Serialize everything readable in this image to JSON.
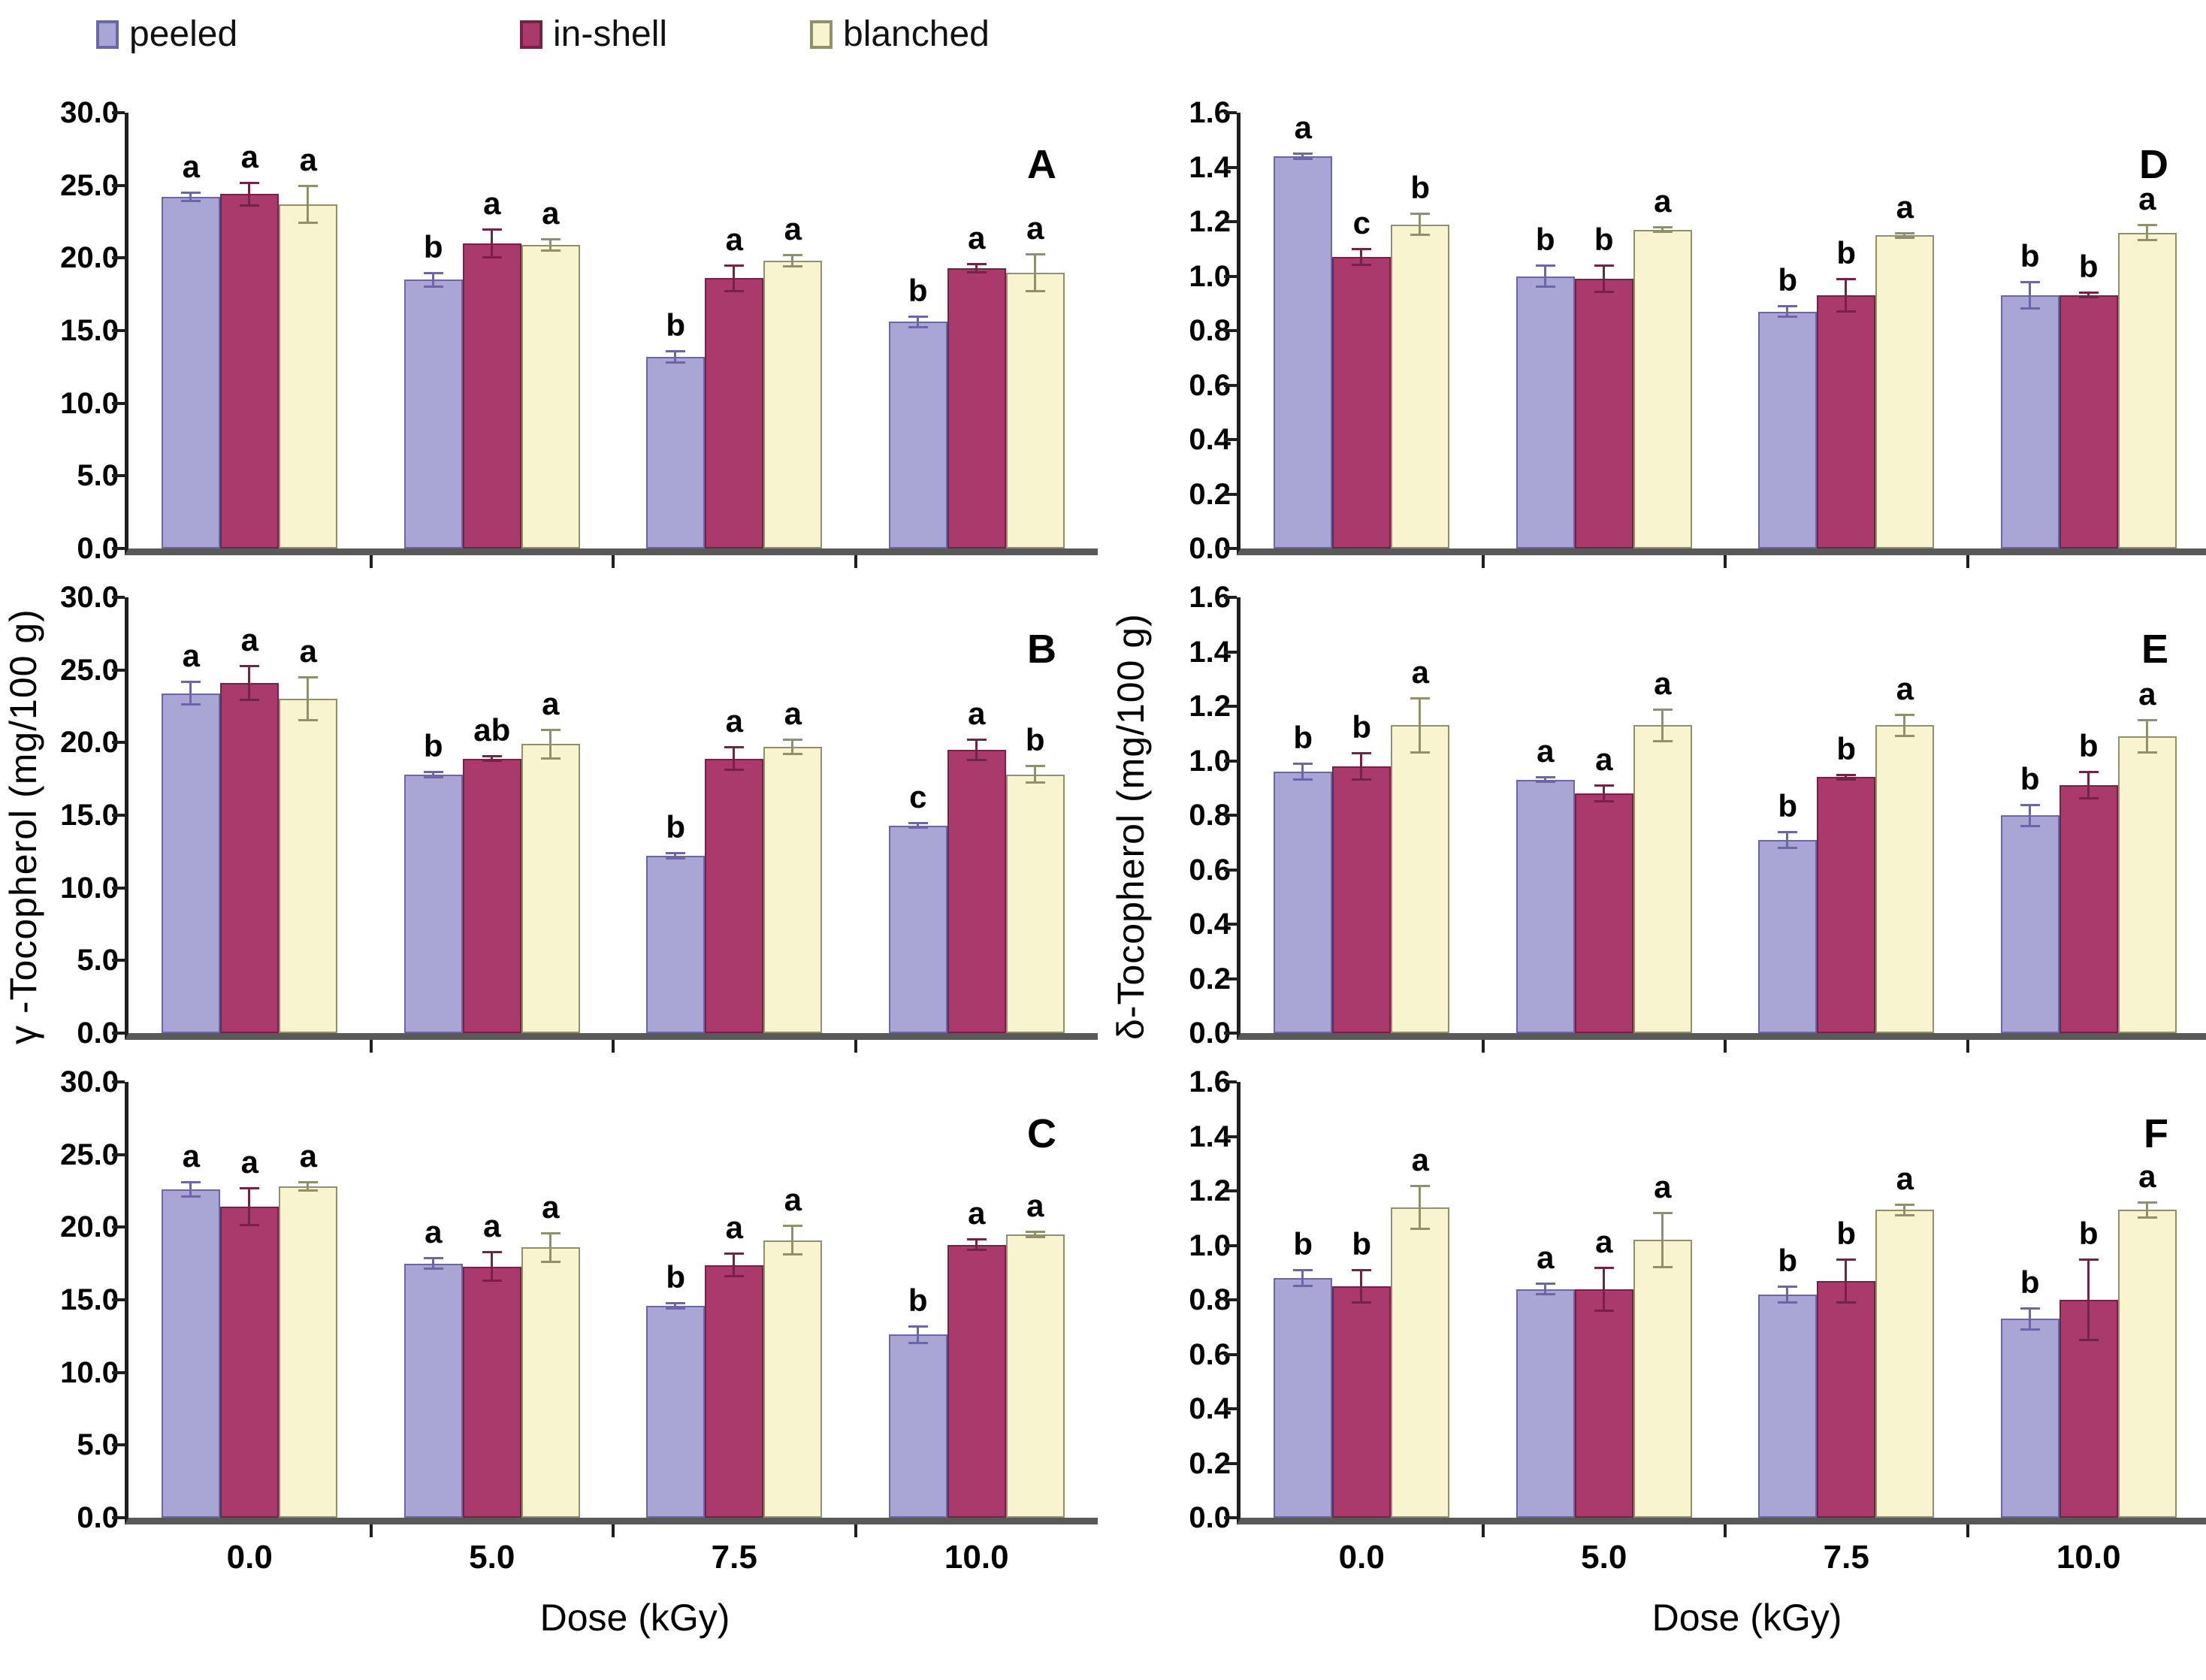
{
  "legend": {
    "items": [
      {
        "label": "peeled",
        "color": "#a9a6d6",
        "border": "#6a67a9"
      },
      {
        "label": "in-shell",
        "color": "#a93a6b",
        "border": "#732346"
      },
      {
        "label": "blanched",
        "color": "#f9f4d0",
        "border": "#90906c"
      }
    ]
  },
  "left_axis_title": "γ -Tocopherol (mg/100 g)",
  "right_axis_title": "δ-Tocopherol (mg/100 g)",
  "x_axis_title": "Dose (kGy)",
  "colors": {
    "baseline": "#595959",
    "spine": "#1f1f1f",
    "error_bar": "#4d4d64",
    "text": "#000000"
  },
  "chart_data": [
    {
      "type": "bar",
      "panel": "A",
      "column": "left",
      "ylabel": "γ -Tocopherol (mg/100 g)",
      "ylim": [
        0,
        30
      ],
      "ytick_step": 5,
      "show_x_labels": false,
      "grid": false,
      "categories": [
        "0.0",
        "5.0",
        "7.5",
        "10.0"
      ],
      "series": [
        {
          "name": "peeled",
          "values": [
            24.2,
            18.5,
            13.2,
            15.6
          ],
          "errors": [
            0.3,
            0.5,
            0.4,
            0.4
          ],
          "letters": [
            "a",
            "b",
            "b",
            "b"
          ]
        },
        {
          "name": "in-shell",
          "values": [
            24.4,
            21.0,
            18.6,
            19.3
          ],
          "errors": [
            0.8,
            1.0,
            0.9,
            0.3
          ],
          "letters": [
            "a",
            "a",
            "a",
            "a"
          ]
        },
        {
          "name": "blanched",
          "values": [
            23.7,
            20.9,
            19.8,
            19.0
          ],
          "errors": [
            1.3,
            0.4,
            0.4,
            1.3
          ],
          "letters": [
            "a",
            "a",
            "a",
            "a"
          ]
        }
      ]
    },
    {
      "type": "bar",
      "panel": "B",
      "column": "left",
      "ylabel": "γ -Tocopherol (mg/100 g)",
      "ylim": [
        0,
        30
      ],
      "ytick_step": 5,
      "show_x_labels": false,
      "grid": false,
      "categories": [
        "0.0",
        "5.0",
        "7.5",
        "10.0"
      ],
      "series": [
        {
          "name": "peeled",
          "values": [
            23.4,
            17.8,
            12.2,
            14.3
          ],
          "errors": [
            0.8,
            0.2,
            0.2,
            0.2
          ],
          "letters": [
            "a",
            "b",
            "b",
            "c"
          ]
        },
        {
          "name": "in-shell",
          "values": [
            24.1,
            18.9,
            18.9,
            19.5
          ],
          "errors": [
            1.2,
            0.2,
            0.8,
            0.7
          ],
          "letters": [
            "a",
            "ab",
            "a",
            "a"
          ]
        },
        {
          "name": "blanched",
          "values": [
            23.0,
            19.9,
            19.7,
            17.8
          ],
          "errors": [
            1.5,
            1.0,
            0.5,
            0.6
          ],
          "letters": [
            "a",
            "a",
            "a",
            "b"
          ]
        }
      ]
    },
    {
      "type": "bar",
      "panel": "C",
      "column": "left",
      "ylabel": "γ -Tocopherol (mg/100 g)",
      "ylim": [
        0,
        30
      ],
      "ytick_step": 5,
      "show_x_labels": true,
      "grid": false,
      "categories": [
        "0.0",
        "5.0",
        "7.5",
        "10.0"
      ],
      "series": [
        {
          "name": "peeled",
          "values": [
            22.6,
            17.5,
            14.6,
            12.6
          ],
          "errors": [
            0.5,
            0.4,
            0.2,
            0.6
          ],
          "letters": [
            "a",
            "a",
            "b",
            "b"
          ]
        },
        {
          "name": "in-shell",
          "values": [
            21.4,
            17.3,
            17.4,
            18.8
          ],
          "errors": [
            1.3,
            1.0,
            0.8,
            0.4
          ],
          "letters": [
            "a",
            "a",
            "a",
            "a"
          ]
        },
        {
          "name": "blanched",
          "values": [
            22.8,
            18.6,
            19.1,
            19.5
          ],
          "errors": [
            0.3,
            1.0,
            1.0,
            0.2
          ],
          "letters": [
            "a",
            "a",
            "a",
            "a"
          ]
        }
      ]
    },
    {
      "type": "bar",
      "panel": "D",
      "column": "right",
      "ylabel": "δ-Tocopherol (mg/100 g)",
      "ylim": [
        0,
        1.6
      ],
      "ytick_step": 0.2,
      "show_x_labels": false,
      "grid": false,
      "categories": [
        "0.0",
        "5.0",
        "7.5",
        "10.0"
      ],
      "series": [
        {
          "name": "peeled",
          "values": [
            1.44,
            1.0,
            0.87,
            0.93
          ],
          "errors": [
            0.01,
            0.04,
            0.02,
            0.05
          ],
          "letters": [
            "a",
            "b",
            "b",
            "b"
          ]
        },
        {
          "name": "in-shell",
          "values": [
            1.07,
            0.99,
            0.93,
            0.93
          ],
          "errors": [
            0.03,
            0.05,
            0.06,
            0.01
          ],
          "letters": [
            "c",
            "b",
            "b",
            "b"
          ]
        },
        {
          "name": "blanched",
          "values": [
            1.19,
            1.17,
            1.15,
            1.16
          ],
          "errors": [
            0.04,
            0.01,
            0.01,
            0.03
          ],
          "letters": [
            "b",
            "a",
            "a",
            "a"
          ]
        }
      ]
    },
    {
      "type": "bar",
      "panel": "E",
      "column": "right",
      "ylabel": "δ-Tocopherol (mg/100 g)",
      "ylim": [
        0,
        1.6
      ],
      "ytick_step": 0.2,
      "show_x_labels": false,
      "grid": false,
      "categories": [
        "0.0",
        "5.0",
        "7.5",
        "10.0"
      ],
      "series": [
        {
          "name": "peeled",
          "values": [
            0.96,
            0.93,
            0.71,
            0.8
          ],
          "errors": [
            0.03,
            0.01,
            0.03,
            0.04
          ],
          "letters": [
            "b",
            "a",
            "b",
            "b"
          ]
        },
        {
          "name": "in-shell",
          "values": [
            0.98,
            0.88,
            0.94,
            0.91
          ],
          "errors": [
            0.05,
            0.03,
            0.01,
            0.05
          ],
          "letters": [
            "b",
            "a",
            "b",
            "b"
          ]
        },
        {
          "name": "blanched",
          "values": [
            1.13,
            1.13,
            1.13,
            1.09
          ],
          "errors": [
            0.1,
            0.06,
            0.04,
            0.06
          ],
          "letters": [
            "a",
            "a",
            "a",
            "a"
          ]
        }
      ]
    },
    {
      "type": "bar",
      "panel": "F",
      "column": "right",
      "ylabel": "δ-Tocopherol (mg/100 g)",
      "ylim": [
        0,
        1.6
      ],
      "ytick_step": 0.2,
      "show_x_labels": true,
      "grid": false,
      "categories": [
        "0.0",
        "5.0",
        "7.5",
        "10.0"
      ],
      "series": [
        {
          "name": "peeled",
          "values": [
            0.88,
            0.84,
            0.82,
            0.73
          ],
          "errors": [
            0.03,
            0.02,
            0.03,
            0.04
          ],
          "letters": [
            "b",
            "a",
            "b",
            "b"
          ]
        },
        {
          "name": "in-shell",
          "values": [
            0.85,
            0.84,
            0.87,
            0.8
          ],
          "errors": [
            0.06,
            0.08,
            0.08,
            0.15
          ],
          "letters": [
            "b",
            "a",
            "b",
            "b"
          ]
        },
        {
          "name": "blanched",
          "values": [
            1.14,
            1.02,
            1.13,
            1.13
          ],
          "errors": [
            0.08,
            0.1,
            0.02,
            0.03
          ],
          "letters": [
            "a",
            "a",
            "a",
            "a"
          ]
        }
      ]
    }
  ]
}
